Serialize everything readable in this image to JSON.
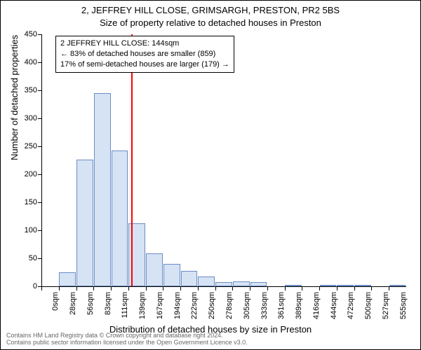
{
  "title_line1": "2, JEFFREY HILL CLOSE, GRIMSARGH, PRESTON, PR2 5BS",
  "title_line2": "Size of property relative to detached houses in Preston",
  "y_label": "Number of detached properties",
  "x_label": "Distribution of detached houses by size in Preston",
  "footer_line1": "Contains HM Land Registry data © Crown copyright and database right 2024.",
  "footer_line2": "Contains public sector information licensed under the Open Government Licence v3.0.",
  "chart": {
    "type": "histogram",
    "ylim": [
      0,
      450
    ],
    "ytick_step": 50,
    "yticks": [
      0,
      50,
      100,
      150,
      200,
      250,
      300,
      350,
      400,
      450
    ],
    "background_color": "#ffffff",
    "bar_fill": "#d6e3f4",
    "bar_border": "#6a8cc4",
    "bar_border_width": 1,
    "reference_line_color": "#ff0000",
    "reference_value": 144,
    "x_categories": [
      "0sqm",
      "28sqm",
      "56sqm",
      "83sqm",
      "111sqm",
      "139sqm",
      "167sqm",
      "194sqm",
      "222sqm",
      "250sqm",
      "278sqm",
      "305sqm",
      "333sqm",
      "361sqm",
      "389sqm",
      "416sqm",
      "444sqm",
      "472sqm",
      "500sqm",
      "527sqm",
      "555sqm"
    ],
    "bar_values": [
      0,
      25,
      226,
      345,
      243,
      112,
      59,
      40,
      28,
      17,
      7,
      9,
      7,
      0,
      2,
      0,
      2,
      3,
      3,
      0,
      2
    ],
    "annotation": {
      "line1": "2 JEFFREY HILL CLOSE: 144sqm",
      "line2": "← 83% of detached houses are smaller (859)",
      "line3": "17% of semi-detached houses are larger (179) →"
    }
  }
}
